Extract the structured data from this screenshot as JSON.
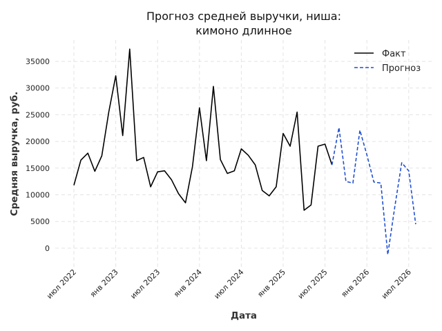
{
  "chart_data": {
    "type": "line",
    "title_line1": "Прогноз средней выручки, ниша:",
    "title_line2": "кимоно длинное",
    "xlabel": "Дата",
    "ylabel": "Средняя выручка, руб.",
    "ylim": [
      -3500,
      39000
    ],
    "yticks": [
      0,
      5000,
      10000,
      15000,
      20000,
      25000,
      30000,
      35000
    ],
    "ytick_labels": [
      "0",
      "5000",
      "10000",
      "15000",
      "20000",
      "25000",
      "30000",
      "35000"
    ],
    "xticks": [
      "2022-07",
      "2023-01",
      "2023-07",
      "2024-01",
      "2024-07",
      "2025-01",
      "2025-07",
      "2026-01",
      "2026-07"
    ],
    "xtick_labels": [
      "июл 2022",
      "янв 2023",
      "июл 2023",
      "янв 2024",
      "июл 2024",
      "янв 2025",
      "июл 2025",
      "янв 2026",
      "июл 2026"
    ],
    "grid": true,
    "legend_position": "top-right",
    "series": [
      {
        "name": "Факт",
        "color": "#000000",
        "style": "solid",
        "x": [
          "2022-07",
          "2022-08",
          "2022-09",
          "2022-10",
          "2022-11",
          "2022-12",
          "2023-01",
          "2023-02",
          "2023-03",
          "2023-04",
          "2023-05",
          "2023-06",
          "2023-07",
          "2023-08",
          "2023-09",
          "2023-10",
          "2023-11",
          "2023-12",
          "2024-01",
          "2024-02",
          "2024-03",
          "2024-04",
          "2024-05",
          "2024-06",
          "2024-07",
          "2024-08",
          "2024-09",
          "2024-10",
          "2024-11",
          "2024-12",
          "2025-01",
          "2025-02",
          "2025-03",
          "2025-04",
          "2025-05",
          "2025-06",
          "2025-07",
          "2025-08"
        ],
        "y": [
          11800,
          16500,
          17800,
          14400,
          17300,
          25500,
          32300,
          21100,
          37300,
          16400,
          17000,
          11500,
          14300,
          14500,
          12800,
          10200,
          8500,
          15300,
          26300,
          16400,
          30300,
          16600,
          14000,
          14500,
          18600,
          17400,
          15600,
          10800,
          9800,
          11500,
          21500,
          19100,
          25500,
          7100,
          8100,
          19100,
          19500,
          15600
        ]
      },
      {
        "name": "Прогноз",
        "color": "#1f4fd1",
        "style": "dashed",
        "x": [
          "2025-08",
          "2025-09",
          "2025-10",
          "2025-11",
          "2025-12",
          "2026-01",
          "2026-02",
          "2026-03",
          "2026-04",
          "2026-05",
          "2026-06",
          "2026-07",
          "2026-08"
        ],
        "y": [
          15600,
          22600,
          12500,
          12200,
          22100,
          17500,
          12400,
          12200,
          -1200,
          7700,
          16000,
          14500,
          4500
        ]
      }
    ]
  }
}
